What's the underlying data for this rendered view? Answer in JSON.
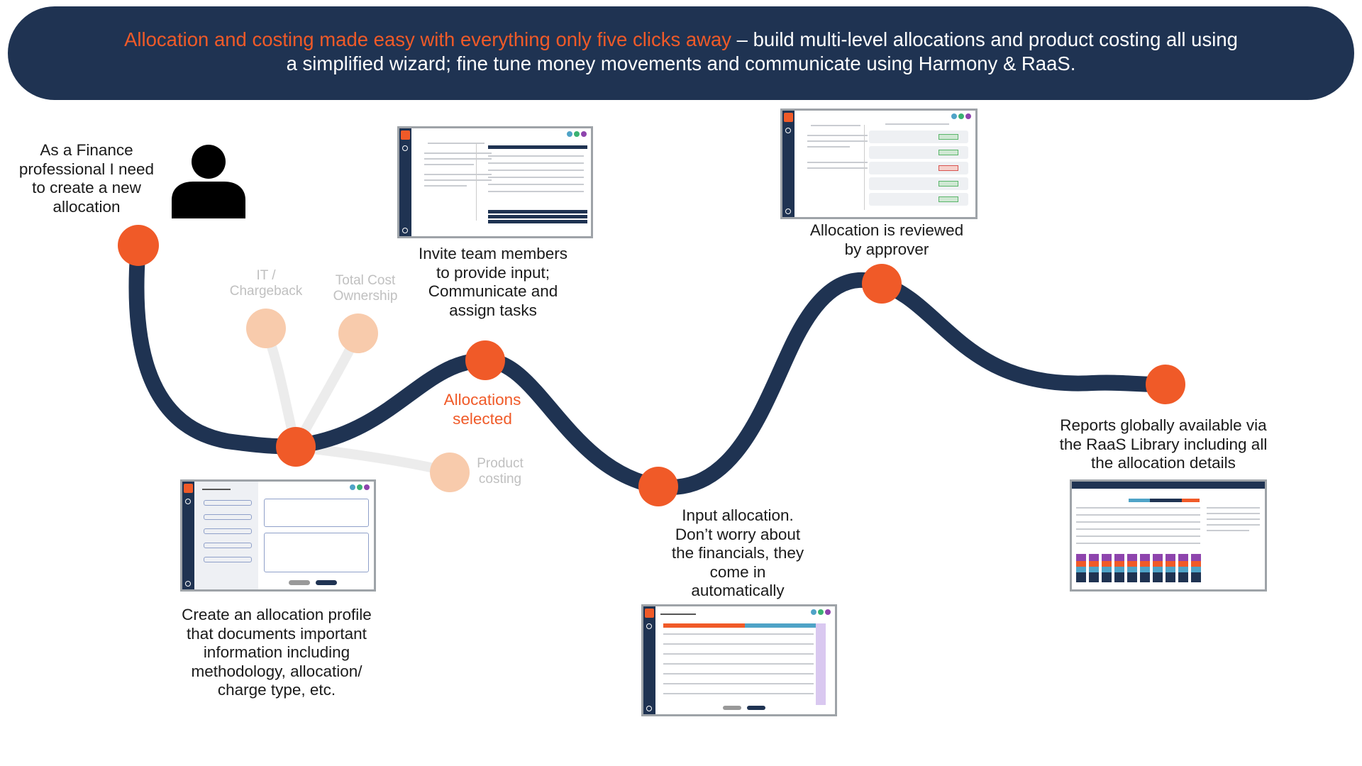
{
  "banner": {
    "highlight": "Allocation and costing made easy with everything only five clicks away",
    "line1_rest": " – build multi-level allocations and product costing all using",
    "line2": "a simplified wizard; fine tune money movements and communicate using Harmony & RaaS."
  },
  "steps": {
    "start": [
      "As a Finance",
      "professional I need",
      "to create a new",
      "allocation"
    ],
    "profile": [
      "Create an allocation profile",
      "that documents important",
      "information including",
      "methodology, allocation/",
      "charge type, etc."
    ],
    "selected": [
      "Allocations",
      "selected"
    ],
    "invite": [
      "Invite team members",
      "to provide input;",
      "Communicate and",
      "assign tasks"
    ],
    "input": [
      "Input allocation.",
      "Don’t worry about",
      "the financials, they",
      "come in",
      "automatically"
    ],
    "review": [
      "Allocation is reviewed",
      "by approver"
    ],
    "reports": [
      "Reports globally available via",
      "the RaaS Library including all",
      "the allocation details"
    ]
  },
  "options": {
    "it": [
      "IT /",
      "Chargeback"
    ],
    "tco": [
      "Total Cost",
      "Ownership"
    ],
    "product": [
      "Product",
      "costing"
    ]
  },
  "colors": {
    "navy": "#1f3352",
    "accent": "#f05a28",
    "faded_node": "#f8cbac",
    "faded_branch": "#ececec",
    "faded_text": "#c0c0c0"
  },
  "icons": {
    "person": "person-icon"
  }
}
